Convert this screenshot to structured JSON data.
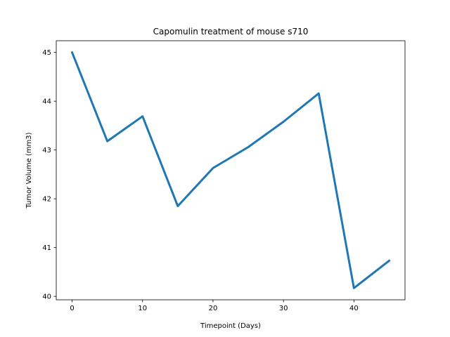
{
  "chart_data": {
    "type": "line",
    "title": "Capomulin treatment of mouse s710",
    "xlabel": "Timepoint (Days)",
    "ylabel": "Tumor Volume (mm3)",
    "x": [
      0,
      5,
      10,
      15,
      20,
      25,
      30,
      35,
      40,
      45
    ],
    "series": [
      {
        "values": [
          45.0,
          43.18,
          43.69,
          41.85,
          42.63,
          43.06,
          43.58,
          44.16,
          40.17,
          40.73
        ],
        "color": "#1f77b4"
      }
    ],
    "xlim": [
      -2.25,
      47.25
    ],
    "ylim": [
      39.93,
      45.24
    ],
    "xticks": [
      0,
      10,
      20,
      30,
      40
    ],
    "yticks": [
      40,
      41,
      42,
      43,
      44,
      45
    ],
    "grid": false,
    "legend": "none"
  }
}
